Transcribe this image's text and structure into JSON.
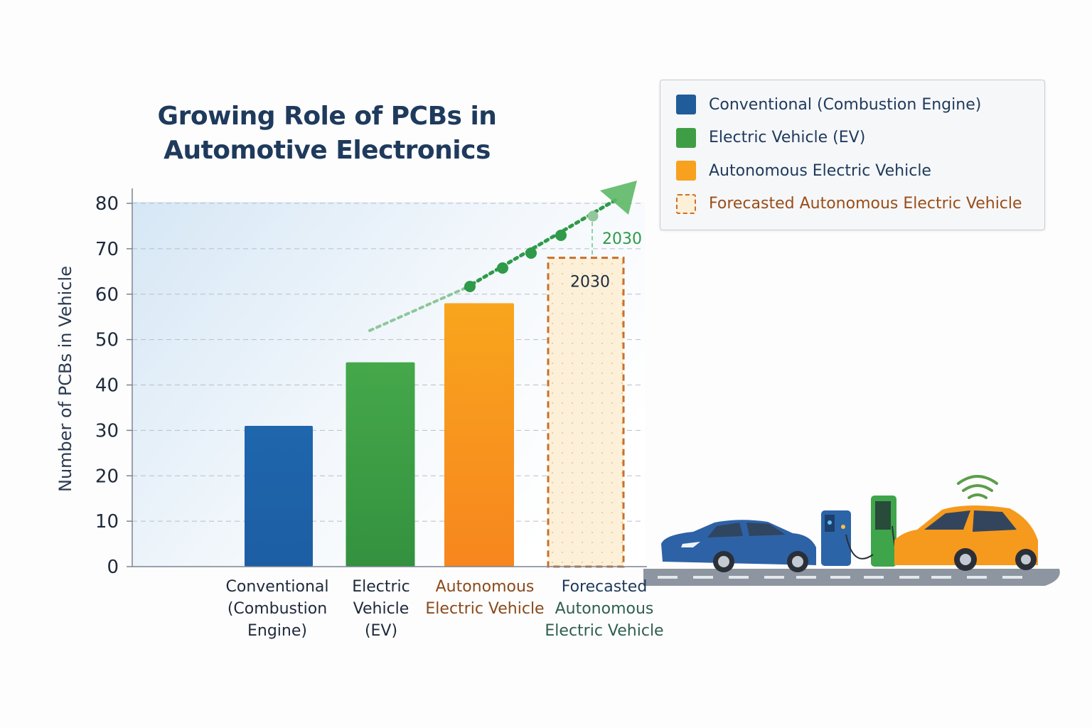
{
  "chart_data": {
    "type": "bar",
    "title": "Growing Role of PCBs in Automotive Electronics",
    "title_lines": [
      "Growing Role of PCBs in",
      "Automotive Electronics"
    ],
    "ylabel": "Number of PCBs in Vehicle",
    "xlabel": "",
    "ylim": [
      0,
      80
    ],
    "yticks": [
      "0",
      "10",
      "20",
      "30",
      "40",
      "50",
      "60",
      "70",
      "80"
    ],
    "grid": true,
    "categories": [
      "Conventional (Combustion Engine)",
      "Electric Vehicle (EV)",
      "Autonomous Electric Vehicle",
      "Forecasted Autonomous Electric Vehicle"
    ],
    "category_label_lines": [
      [
        "Conventional",
        "(Combustion",
        "Engine)"
      ],
      [
        "Electric",
        "Vehicle",
        "(EV)"
      ],
      [
        "Autonomous",
        "Electric Vehicle"
      ],
      [
        "Forecasted",
        "Autonomous",
        "Electric Vehicle"
      ]
    ],
    "values": [
      31,
      45,
      58,
      68
    ],
    "colors": [
      "#1f66ad",
      "#3f9e45",
      "#f7931e",
      "#fdf0d8"
    ],
    "forecast_border_color": "#c8702a",
    "trend_color": "#2e9a4a",
    "annotations": {
      "bar_label": "2030",
      "trend_label": "2030"
    },
    "legend": {
      "placement": "top-right",
      "items": [
        {
          "label": "Conventional (Combustion Engine)",
          "color": "#1f5c99"
        },
        {
          "label": "Electric Vehicle (EV)",
          "color": "#3f9e45"
        },
        {
          "label": "Autonomous Electric Vehicle",
          "color": "#f7a11e"
        },
        {
          "label": "Forecasted Autonomous Electric Vehicle",
          "color": "#c8702a",
          "dashed": true
        }
      ]
    }
  }
}
